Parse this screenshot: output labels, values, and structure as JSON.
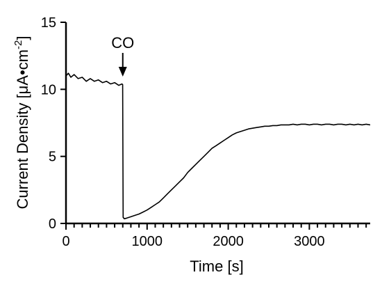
{
  "chart_data": {
    "type": "line",
    "title": "",
    "xlabel": "Time [s]",
    "ylabel_main": "Current Density [μA•cm",
    "ylabel_sup": "-2",
    "ylabel_close": "]",
    "xlim": [
      0,
      3750
    ],
    "ylim": [
      0,
      15
    ],
    "x_major_ticks": [
      0,
      1000,
      2000,
      3000
    ],
    "x_tick_labels": [
      "0",
      "1000",
      "2000",
      "3000"
    ],
    "x_minor_step": 100,
    "y_major_ticks": [
      0,
      5,
      10,
      15
    ],
    "y_tick_labels": [
      "0",
      "5",
      "10",
      "15"
    ],
    "grid": false,
    "line_color": "#000000",
    "annotation": {
      "text": "CO",
      "x": 700
    },
    "series": [
      {
        "x": [
          0,
          30,
          60,
          100,
          150,
          200,
          250,
          300,
          350,
          400,
          450,
          500,
          550,
          600,
          650,
          690,
          699,
          705,
          720,
          750,
          800,
          850,
          900,
          950,
          1000,
          1050,
          1100,
          1150,
          1200,
          1250,
          1300,
          1350,
          1400,
          1450,
          1500,
          1550,
          1600,
          1650,
          1700,
          1750,
          1800,
          1850,
          1900,
          1950,
          2000,
          2050,
          2100,
          2150,
          2200,
          2250,
          2300,
          2350,
          2400,
          2450,
          2500,
          2550,
          2600,
          2650,
          2700,
          2750,
          2800,
          2850,
          2900,
          2950,
          3000,
          3050,
          3100,
          3150,
          3200,
          3250,
          3300,
          3350,
          3400,
          3450,
          3500,
          3550,
          3600,
          3650,
          3700,
          3750
        ],
        "y": [
          11.0,
          11.2,
          10.9,
          11.1,
          10.8,
          10.9,
          10.6,
          10.8,
          10.6,
          10.7,
          10.5,
          10.6,
          10.4,
          10.5,
          10.3,
          10.4,
          10.35,
          0.45,
          0.35,
          0.4,
          0.5,
          0.6,
          0.7,
          0.85,
          1.0,
          1.2,
          1.4,
          1.6,
          1.9,
          2.2,
          2.5,
          2.8,
          3.1,
          3.4,
          3.8,
          4.1,
          4.4,
          4.7,
          5.0,
          5.3,
          5.6,
          5.8,
          6.0,
          6.2,
          6.4,
          6.6,
          6.75,
          6.85,
          6.95,
          7.05,
          7.1,
          7.15,
          7.2,
          7.25,
          7.25,
          7.3,
          7.3,
          7.35,
          7.35,
          7.35,
          7.4,
          7.35,
          7.4,
          7.4,
          7.35,
          7.4,
          7.4,
          7.35,
          7.4,
          7.4,
          7.35,
          7.4,
          7.4,
          7.35,
          7.4,
          7.35,
          7.4,
          7.35,
          7.4,
          7.35
        ]
      }
    ]
  }
}
